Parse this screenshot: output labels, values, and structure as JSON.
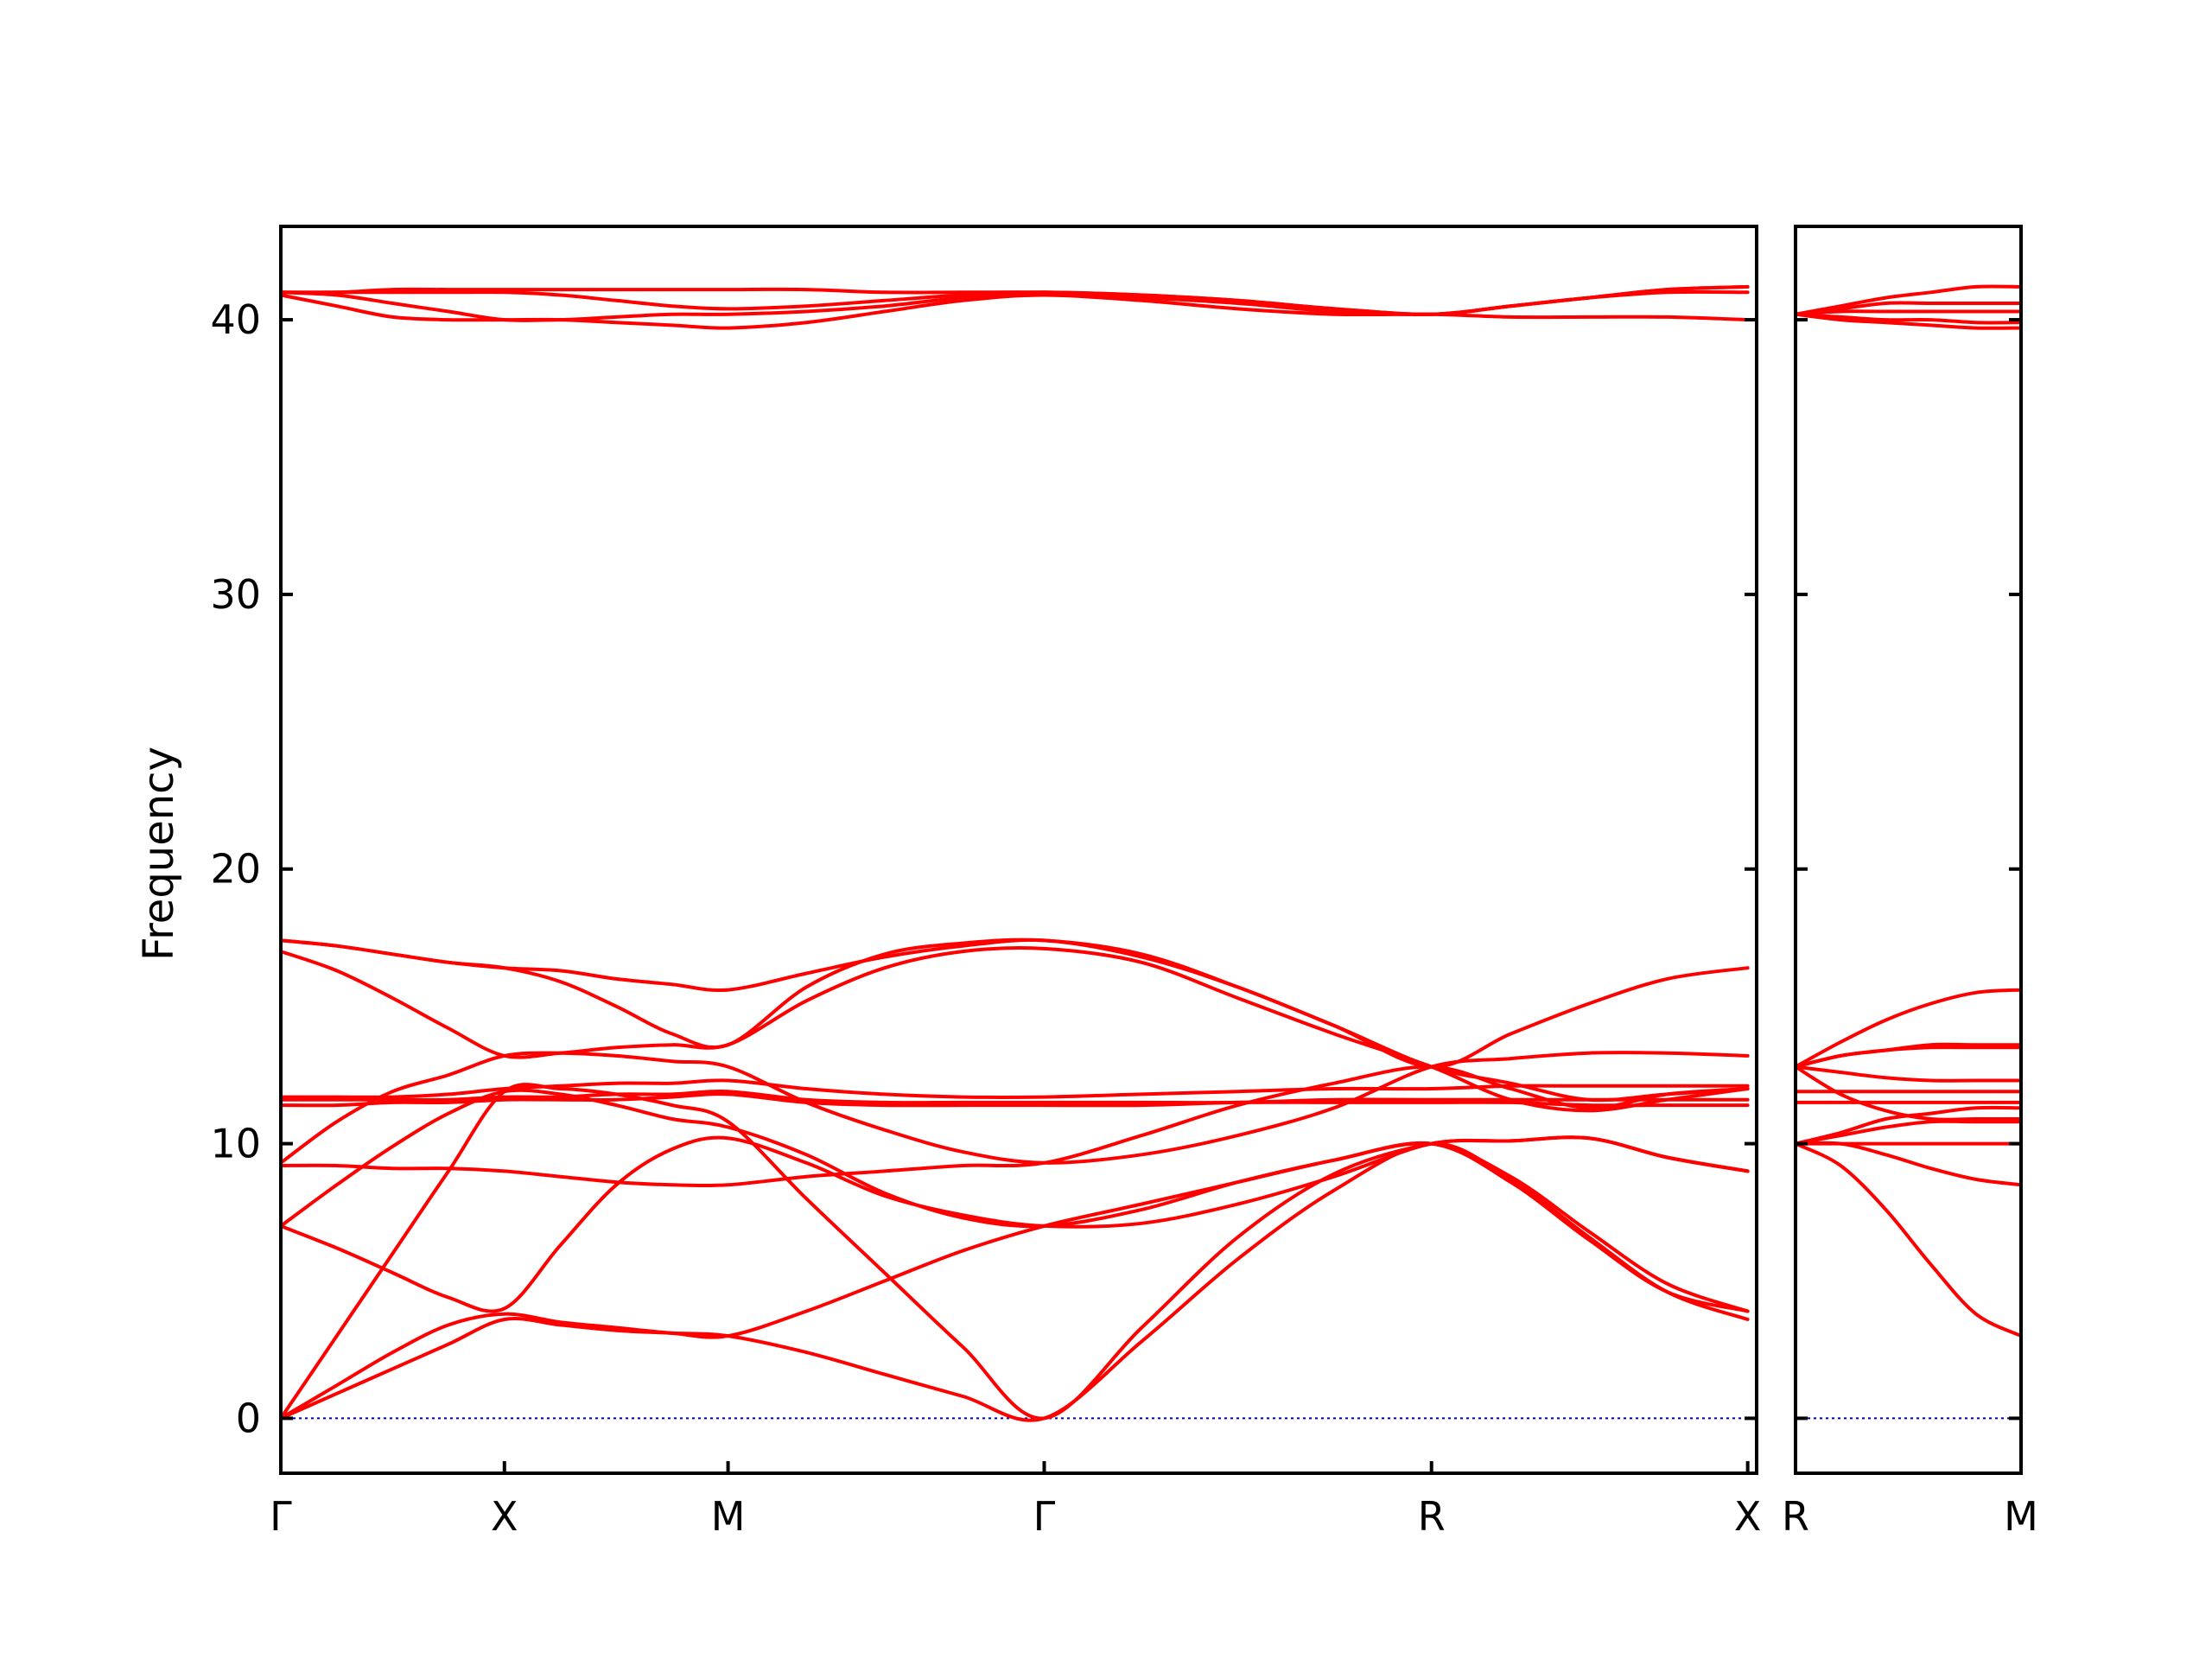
{
  "chart_data": {
    "type": "line",
    "title": "",
    "ylabel": "Frequency",
    "ylim": [
      -2,
      43.4
    ],
    "yticks": [
      0,
      10,
      20,
      30,
      40
    ],
    "band_color": "#ff0000",
    "zero_line_color": "#0000aa",
    "zero_line_style": "dotted",
    "grid": false,
    "legend": "none",
    "panels": [
      {
        "xlim": [
          0,
          6.6
        ],
        "ticks": [
          {
            "label": "Γ",
            "x": 0
          },
          {
            "label": "X",
            "x": 1
          },
          {
            "label": "M",
            "x": 2
          },
          {
            "label": "Γ",
            "x": 3.414
          },
          {
            "label": "R",
            "x": 5.146
          },
          {
            "label": "X",
            "x": 6.56
          }
        ],
        "x": [
          0,
          0.25,
          0.5,
          0.75,
          1.0,
          1.25,
          1.5,
          1.75,
          2.0,
          2.35,
          2.7,
          3.05,
          3.414,
          3.85,
          4.28,
          4.71,
          5.146,
          5.5,
          5.85,
          6.2,
          6.56
        ],
        "series": [
          {
            "values": [
              0,
              0.9,
              1.8,
              2.7,
              3.6,
              3.4,
              3.2,
              3.1,
              3.0,
              2.4,
              1.6,
              0.8,
              0,
              2.8,
              5.8,
              8.3,
              10.0,
              8.7,
              6.6,
              4.6,
              3.6
            ]
          },
          {
            "values": [
              0,
              1.2,
              2.4,
              3.4,
              3.8,
              3.5,
              3.3,
              3.1,
              3.0,
              3.9,
              5.0,
              6.1,
              7.0,
              7.8,
              8.6,
              9.4,
              10.0,
              8.8,
              6.8,
              4.9,
              3.9
            ]
          },
          {
            "values": [
              0,
              3.0,
              6.0,
              9.0,
              11.9,
              12.0,
              11.8,
              11.4,
              10.8,
              8.0,
              5.3,
              2.6,
              0,
              3.3,
              6.6,
              8.9,
              10.0,
              10.1,
              10.2,
              9.5,
              9.0
            ]
          },
          {
            "values": [
              7.0,
              6.2,
              5.3,
              4.4,
              4.0,
              6.3,
              8.5,
              9.8,
              10.2,
              9.3,
              8.1,
              7.4,
              7.0,
              7.1,
              7.8,
              8.8,
              10.0,
              10.1,
              10.2,
              9.5,
              9.0
            ]
          },
          {
            "values": [
              7.0,
              8.5,
              9.9,
              11.1,
              11.9,
              11.8,
              11.4,
              10.9,
              10.6,
              9.6,
              8.2,
              7.3,
              7.0,
              7.6,
              8.6,
              9.4,
              10.0,
              8.6,
              6.5,
              4.6,
              3.9
            ]
          },
          {
            "values": [
              9.2,
              9.2,
              9.1,
              9.1,
              9.0,
              8.8,
              8.6,
              8.5,
              8.5,
              8.8,
              9.0,
              9.2,
              9.3,
              10.3,
              11.4,
              12.2,
              12.8,
              12.0,
              11.3,
              11.8,
              12.0
            ]
          },
          {
            "values": [
              9.3,
              10.8,
              11.9,
              12.5,
              13.2,
              13.3,
              13.2,
              13.0,
              12.8,
              11.5,
              10.5,
              9.7,
              9.3,
              9.6,
              10.3,
              11.3,
              12.8,
              13.1,
              13.3,
              13.3,
              13.2
            ]
          },
          {
            "values": [
              11.4,
              11.4,
              11.5,
              11.5,
              11.6,
              11.6,
              11.6,
              11.7,
              11.8,
              11.5,
              11.4,
              11.4,
              11.4,
              11.4,
              11.5,
              11.5,
              11.5,
              11.5,
              11.4,
              11.4,
              11.4
            ]
          },
          {
            "values": [
              11.6,
              11.6,
              11.6,
              11.6,
              11.7,
              11.7,
              11.8,
              11.8,
              11.9,
              11.6,
              11.5,
              11.5,
              11.5,
              11.5,
              11.5,
              11.6,
              11.6,
              11.6,
              11.6,
              11.6,
              11.6
            ]
          },
          {
            "values": [
              11.7,
              11.7,
              11.7,
              11.8,
              12.0,
              12.1,
              12.2,
              12.2,
              12.3,
              12.0,
              11.8,
              11.7,
              11.7,
              11.8,
              11.9,
              12.0,
              12.0,
              12.1,
              12.1,
              12.1,
              12.1
            ]
          },
          {
            "values": [
              17.0,
              16.3,
              15.3,
              14.2,
              13.2,
              13.3,
              13.5,
              13.6,
              13.6,
              15.2,
              16.4,
              17.0,
              17.1,
              16.6,
              15.3,
              14.0,
              12.8,
              11.6,
              11.2,
              11.6,
              12.0
            ]
          },
          {
            "values": [
              17.4,
              17.2,
              16.9,
              16.6,
              16.4,
              16.3,
              16.0,
              15.8,
              15.6,
              16.2,
              16.8,
              17.2,
              17.4,
              16.8,
              15.7,
              14.3,
              12.8,
              14.0,
              15.1,
              16.0,
              16.4
            ]
          },
          {
            "values": [
              17.4,
              17.2,
              16.9,
              16.6,
              16.4,
              15.9,
              15.0,
              14.0,
              13.6,
              15.7,
              16.9,
              17.3,
              17.4,
              16.9,
              15.7,
              14.3,
              12.8,
              12.2,
              11.6,
              11.8,
              12.0
            ]
          },
          {
            "values": [
              40.9,
              40.5,
              40.1,
              40.0,
              40.0,
              40.0,
              39.9,
              39.8,
              39.7,
              39.9,
              40.3,
              40.7,
              40.9,
              40.7,
              40.4,
              40.2,
              40.2,
              40.1,
              40.1,
              40.1,
              40.0
            ]
          },
          {
            "values": [
              41.0,
              40.9,
              40.6,
              40.3,
              40.0,
              40.0,
              40.1,
              40.2,
              40.2,
              40.3,
              40.5,
              40.8,
              40.9,
              40.8,
              40.6,
              40.3,
              40.2,
              40.5,
              40.8,
              41.0,
              41.0
            ]
          },
          {
            "values": [
              41.0,
              41.0,
              41.0,
              41.0,
              41.0,
              40.9,
              40.7,
              40.5,
              40.4,
              40.5,
              40.7,
              40.9,
              41.0,
              40.9,
              40.7,
              40.4,
              40.2,
              40.5,
              40.8,
              41.1,
              41.2
            ]
          },
          {
            "values": [
              41.0,
              41.0,
              41.1,
              41.1,
              41.1,
              41.1,
              41.1,
              41.1,
              41.1,
              41.1,
              41.0,
              41.0,
              41.0,
              40.9,
              40.7,
              40.4,
              40.2,
              40.5,
              40.8,
              41.1,
              41.2
            ]
          }
        ]
      },
      {
        "xlim": [
          0,
          1
        ],
        "ticks": [
          {
            "label": "R",
            "x": 0
          },
          {
            "label": "M",
            "x": 1
          }
        ],
        "x": [
          0,
          0.2,
          0.4,
          0.6,
          0.8,
          1.0
        ],
        "series": [
          {
            "values": [
              10.0,
              9.2,
              7.6,
              5.6,
              3.8,
              3.0
            ]
          },
          {
            "values": [
              10.0,
              10.0,
              10.0,
              10.0,
              10.0,
              10.0
            ]
          },
          {
            "values": [
              10.0,
              10.0,
              9.6,
              9.1,
              8.7,
              8.5
            ]
          },
          {
            "values": [
              10.0,
              10.3,
              10.6,
              10.8,
              10.8,
              10.8
            ]
          },
          {
            "values": [
              10.0,
              10.4,
              10.9,
              11.1,
              11.3,
              11.3
            ]
          },
          {
            "values": [
              12.8,
              11.8,
              11.2,
              10.9,
              10.9,
              10.9
            ]
          },
          {
            "values": [
              11.5,
              11.5,
              11.5,
              11.5,
              11.5,
              11.5
            ]
          },
          {
            "values": [
              11.9,
              11.9,
              11.9,
              11.9,
              11.9,
              11.9
            ]
          },
          {
            "values": [
              12.8,
              12.6,
              12.4,
              12.3,
              12.3,
              12.3
            ]
          },
          {
            "values": [
              12.8,
              13.2,
              13.4,
              13.5,
              13.5,
              13.5
            ]
          },
          {
            "values": [
              12.8,
              13.2,
              13.4,
              13.6,
              13.6,
              13.6
            ]
          },
          {
            "values": [
              12.8,
              13.7,
              14.5,
              15.1,
              15.5,
              15.6
            ]
          },
          {
            "values": [
              40.2,
              40.0,
              39.9,
              39.8,
              39.7,
              39.7
            ]
          },
          {
            "values": [
              40.2,
              40.1,
              40.0,
              40.0,
              39.9,
              39.9
            ]
          },
          {
            "values": [
              40.2,
              40.3,
              40.3,
              40.3,
              40.3,
              40.3
            ]
          },
          {
            "values": [
              40.2,
              40.4,
              40.6,
              40.6,
              40.6,
              40.6
            ]
          },
          {
            "values": [
              40.2,
              40.5,
              40.8,
              41.0,
              41.2,
              41.2
            ]
          }
        ]
      }
    ]
  }
}
